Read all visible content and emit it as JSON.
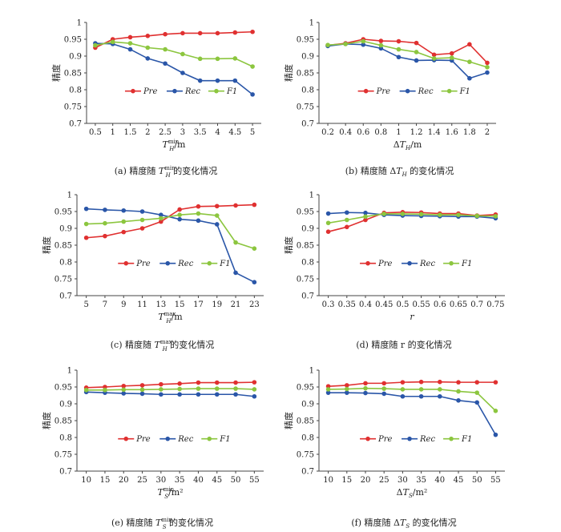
{
  "colors": {
    "Pre": "#e03030",
    "Rec": "#2a56a8",
    "F1": "#8cc63f"
  },
  "chart_data": [
    {
      "type": "line",
      "caption": "(a) 精度随 T_H^min 的变化情况",
      "xlabel": "T_H^min/m",
      "ylabel": "精度",
      "ylim": [
        0.7,
        1
      ],
      "yticks": [
        "0.7",
        "0.75",
        "0.8",
        "0.85",
        "0.9",
        "0.95",
        "1"
      ],
      "categories": [
        "0.5",
        "1",
        "1.5",
        "2",
        "2.5",
        "3",
        "3.5",
        "4",
        "4.5",
        "5"
      ],
      "legend_order": [
        "Pre",
        "Rec",
        "F1"
      ],
      "series": [
        {
          "name": "Pre",
          "values": [
            0.925,
            0.95,
            0.956,
            0.96,
            0.965,
            0.968,
            0.968,
            0.968,
            0.97,
            0.972
          ]
        },
        {
          "name": "Rec",
          "values": [
            0.938,
            0.936,
            0.92,
            0.893,
            0.878,
            0.85,
            0.827,
            0.827,
            0.827,
            0.786
          ]
        },
        {
          "name": "F1",
          "values": [
            0.932,
            0.942,
            0.938,
            0.925,
            0.92,
            0.906,
            0.892,
            0.892,
            0.893,
            0.869
          ]
        }
      ]
    },
    {
      "type": "line",
      "caption": "(b) 精度随 ΔT_H 的变化情况",
      "xlabel": "ΔT_H/m",
      "ylabel": "精度",
      "ylim": [
        0.7,
        1
      ],
      "yticks": [
        "0.7",
        "0.75",
        "0.8",
        "0.85",
        "0.9",
        "0.95",
        "1"
      ],
      "categories": [
        "0.2",
        "0.4",
        "0.6",
        "0.8",
        "1",
        "1.2",
        "1.4",
        "1.6",
        "1.8",
        "2"
      ],
      "legend_order": [
        "Pre",
        "Rec",
        "F1"
      ],
      "series": [
        {
          "name": "Pre",
          "values": [
            0.932,
            0.938,
            0.95,
            0.945,
            0.944,
            0.939,
            0.904,
            0.908,
            0.935,
            0.88
          ]
        },
        {
          "name": "Rec",
          "values": [
            0.93,
            0.936,
            0.934,
            0.923,
            0.897,
            0.887,
            0.888,
            0.887,
            0.834,
            0.851
          ]
        },
        {
          "name": "F1",
          "values": [
            0.933,
            0.936,
            0.944,
            0.932,
            0.92,
            0.912,
            0.893,
            0.895,
            0.883,
            0.867
          ]
        }
      ]
    },
    {
      "type": "line",
      "caption": "(c) 精度随 T_H^max 的变化情况",
      "xlabel": "T_H^max/m",
      "ylabel": "精度",
      "ylim": [
        0.7,
        1
      ],
      "yticks": [
        "0.7",
        "0.75",
        "0.8",
        "0.85",
        "0.9",
        "0.95",
        "1"
      ],
      "categories": [
        "5",
        "7",
        "9",
        "11",
        "13",
        "15",
        "17",
        "19",
        "21",
        "23"
      ],
      "legend_order": [
        "Pre",
        "Rec",
        "F1"
      ],
      "series": [
        {
          "name": "Pre",
          "values": [
            0.872,
            0.877,
            0.889,
            0.9,
            0.92,
            0.956,
            0.965,
            0.966,
            0.968,
            0.97
          ]
        },
        {
          "name": "Rec",
          "values": [
            0.958,
            0.955,
            0.953,
            0.95,
            0.94,
            0.927,
            0.923,
            0.912,
            0.768,
            0.74
          ]
        },
        {
          "name": "F1",
          "values": [
            0.913,
            0.915,
            0.92,
            0.925,
            0.93,
            0.94,
            0.944,
            0.938,
            0.858,
            0.84
          ]
        }
      ]
    },
    {
      "type": "line",
      "caption": "(d) 精度随 r 的变化情况",
      "xlabel": "r",
      "ylabel": "精度",
      "ylim": [
        0.7,
        1
      ],
      "yticks": [
        "0.7",
        "0.75",
        "0.8",
        "0.85",
        "0.9",
        "0.95",
        "1"
      ],
      "categories": [
        "0.3",
        "0.35",
        "0.4",
        "0.45",
        "0.5",
        "0.55",
        "0.6",
        "0.65",
        "0.7",
        "0.75"
      ],
      "legend_order": [
        "Pre",
        "Rec",
        "F1"
      ],
      "series": [
        {
          "name": "Pre",
          "values": [
            0.89,
            0.904,
            0.925,
            0.946,
            0.948,
            0.947,
            0.944,
            0.944,
            0.938,
            0.941
          ]
        },
        {
          "name": "Rec",
          "values": [
            0.944,
            0.947,
            0.946,
            0.94,
            0.938,
            0.937,
            0.936,
            0.935,
            0.935,
            0.93
          ]
        },
        {
          "name": "F1",
          "values": [
            0.916,
            0.925,
            0.935,
            0.943,
            0.943,
            0.942,
            0.94,
            0.94,
            0.937,
            0.936
          ]
        }
      ]
    },
    {
      "type": "line",
      "caption": "(e) 精度随 T_S^min 的变化情况",
      "xlabel": "T_S^min/m²",
      "ylabel": "精度",
      "ylim": [
        0.7,
        1
      ],
      "yticks": [
        "0.7",
        "0.75",
        "0.8",
        "0.85",
        "0.9",
        "0.95",
        "1"
      ],
      "categories": [
        "10",
        "15",
        "20",
        "25",
        "30",
        "35",
        "40",
        "45",
        "50",
        "55"
      ],
      "legend_order": [
        "Pre",
        "Rec",
        "F1"
      ],
      "series": [
        {
          "name": "Pre",
          "values": [
            0.948,
            0.95,
            0.953,
            0.955,
            0.958,
            0.96,
            0.963,
            0.963,
            0.963,
            0.964
          ]
        },
        {
          "name": "Rec",
          "values": [
            0.935,
            0.933,
            0.931,
            0.93,
            0.928,
            0.928,
            0.928,
            0.928,
            0.928,
            0.922
          ]
        },
        {
          "name": "F1",
          "values": [
            0.941,
            0.941,
            0.942,
            0.942,
            0.943,
            0.944,
            0.945,
            0.945,
            0.945,
            0.943
          ]
        }
      ]
    },
    {
      "type": "line",
      "caption": "(f) 精度随 ΔT_S 的变化情况",
      "xlabel": "ΔT_S/m²",
      "ylabel": "精度",
      "ylim": [
        0.7,
        1
      ],
      "yticks": [
        "0.7",
        "0.75",
        "0.8",
        "0.85",
        "0.9",
        "0.95",
        "1"
      ],
      "categories": [
        "10",
        "15",
        "20",
        "25",
        "30",
        "35",
        "40",
        "45",
        "50",
        "55"
      ],
      "legend_order": [
        "Pre",
        "Rec",
        "F1"
      ],
      "series": [
        {
          "name": "Pre",
          "values": [
            0.952,
            0.955,
            0.961,
            0.961,
            0.964,
            0.965,
            0.965,
            0.964,
            0.964,
            0.964
          ]
        },
        {
          "name": "Rec",
          "values": [
            0.933,
            0.933,
            0.932,
            0.93,
            0.922,
            0.922,
            0.922,
            0.91,
            0.904,
            0.808
          ]
        },
        {
          "name": "F1",
          "values": [
            0.943,
            0.944,
            0.946,
            0.945,
            0.943,
            0.943,
            0.943,
            0.937,
            0.933,
            0.879
          ]
        }
      ]
    }
  ]
}
